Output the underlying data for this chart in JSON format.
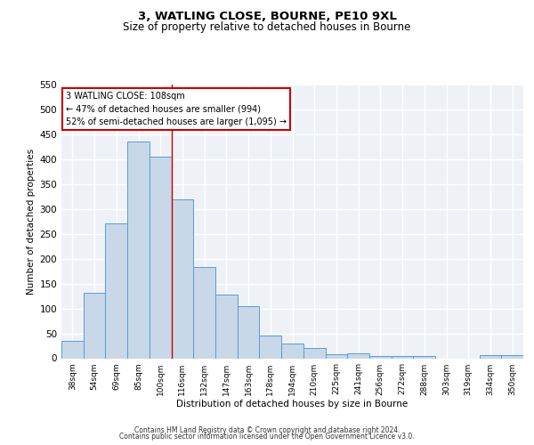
{
  "title": "3, WATLING CLOSE, BOURNE, PE10 9XL",
  "subtitle": "Size of property relative to detached houses in Bourne",
  "xlabel": "Distribution of detached houses by size in Bourne",
  "ylabel": "Number of detached properties",
  "categories": [
    "38sqm",
    "54sqm",
    "69sqm",
    "85sqm",
    "100sqm",
    "116sqm",
    "132sqm",
    "147sqm",
    "163sqm",
    "178sqm",
    "194sqm",
    "210sqm",
    "225sqm",
    "241sqm",
    "256sqm",
    "272sqm",
    "288sqm",
    "303sqm",
    "319sqm",
    "334sqm",
    "350sqm"
  ],
  "values": [
    35,
    132,
    271,
    435,
    405,
    320,
    184,
    127,
    104,
    45,
    30,
    20,
    8,
    10,
    4,
    5,
    5,
    0,
    0,
    7,
    7
  ],
  "bar_color": "#c8d8e8",
  "bar_edge_color": "#5b9bd5",
  "vline_x_index": 4.5,
  "vline_color": "#cc0000",
  "annotation_text": "3 WATLING CLOSE: 108sqm\n← 47% of detached houses are smaller (994)\n52% of semi-detached houses are larger (1,095) →",
  "annotation_box_color": "#ffffff",
  "annotation_box_edge_color": "#cc0000",
  "ylim": [
    0,
    550
  ],
  "yticks": [
    0,
    50,
    100,
    150,
    200,
    250,
    300,
    350,
    400,
    450,
    500,
    550
  ],
  "bg_color": "#eef2f7",
  "grid_color": "#ffffff",
  "footer_line1": "Contains HM Land Registry data © Crown copyright and database right 2024.",
  "footer_line2": "Contains public sector information licensed under the Open Government Licence v3.0."
}
